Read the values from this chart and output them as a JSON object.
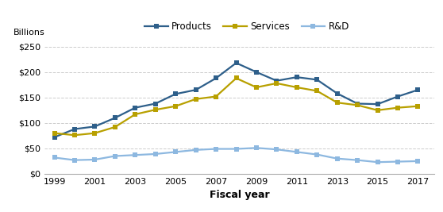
{
  "years": [
    1999,
    2000,
    2001,
    2002,
    2003,
    2004,
    2005,
    2006,
    2007,
    2008,
    2009,
    2010,
    2011,
    2012,
    2013,
    2014,
    2015,
    2016,
    2017
  ],
  "products": [
    72,
    88,
    93,
    110,
    130,
    138,
    157,
    165,
    188,
    218,
    200,
    183,
    190,
    185,
    158,
    138,
    137,
    152,
    165
  ],
  "services": [
    80,
    76,
    80,
    92,
    117,
    126,
    133,
    147,
    152,
    188,
    170,
    178,
    170,
    163,
    140,
    135,
    125,
    130,
    133
  ],
  "rd": [
    32,
    27,
    28,
    35,
    37,
    39,
    43,
    47,
    49,
    49,
    51,
    48,
    43,
    38,
    30,
    27,
    23,
    24,
    25
  ],
  "products_color": "#2E5F8A",
  "services_color": "#B8A000",
  "rd_color": "#8DB8E0",
  "ylim": [
    0,
    250
  ],
  "yticks": [
    0,
    50,
    100,
    150,
    200,
    250
  ],
  "ylabel": "Billions",
  "xlabel": "Fiscal year",
  "legend_labels": [
    "Products",
    "Services",
    "R&D"
  ],
  "background_color": "#ffffff",
  "grid_color": "#cccccc",
  "xticks": [
    1999,
    2001,
    2003,
    2005,
    2007,
    2009,
    2011,
    2013,
    2015,
    2017
  ],
  "xlim": [
    1998.5,
    2017.8
  ]
}
